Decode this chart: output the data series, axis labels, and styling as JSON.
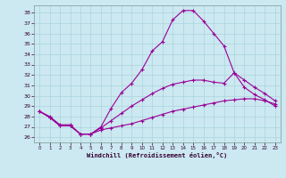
{
  "xlabel": "Windchill (Refroidissement éolien,°C)",
  "background_color": "#cce8f0",
  "grid_color": "#aad4de",
  "line_color": "#990099",
  "xlim": [
    -0.5,
    23.5
  ],
  "ylim": [
    25.5,
    38.7
  ],
  "xticks": [
    0,
    1,
    2,
    3,
    4,
    5,
    6,
    7,
    8,
    9,
    10,
    11,
    12,
    13,
    14,
    15,
    16,
    17,
    18,
    19,
    20,
    21,
    22,
    23
  ],
  "yticks": [
    26,
    27,
    28,
    29,
    30,
    31,
    32,
    33,
    34,
    35,
    36,
    37,
    38
  ],
  "s1_x": [
    0,
    1,
    2,
    3,
    4,
    5,
    6,
    7,
    8,
    9,
    10,
    11,
    12,
    13,
    14,
    15,
    16,
    17,
    18,
    19,
    20,
    21,
    22,
    23
  ],
  "s1_y": [
    28.5,
    28.0,
    27.2,
    27.2,
    26.3,
    26.3,
    27.0,
    28.8,
    30.3,
    31.2,
    32.5,
    34.3,
    35.2,
    37.3,
    38.2,
    38.2,
    37.2,
    36.0,
    34.8,
    32.2,
    30.8,
    30.1,
    29.6,
    29.0
  ],
  "s2_x": [
    0,
    1,
    2,
    3,
    4,
    5,
    6,
    7,
    8,
    9,
    10,
    11,
    12,
    13,
    14,
    15,
    16,
    17,
    18,
    19,
    20,
    21,
    22,
    23
  ],
  "s2_y": [
    28.5,
    27.9,
    27.1,
    27.1,
    26.3,
    26.3,
    26.7,
    26.9,
    27.1,
    27.3,
    27.6,
    27.9,
    28.2,
    28.5,
    28.7,
    28.9,
    29.1,
    29.3,
    29.5,
    29.6,
    29.7,
    29.7,
    29.5,
    29.2
  ],
  "s3_x": [
    0,
    1,
    2,
    3,
    4,
    5,
    6,
    7,
    8,
    9,
    10,
    11,
    12,
    13,
    14,
    15,
    16,
    17,
    18,
    19,
    20,
    21,
    22,
    23
  ],
  "s3_y": [
    28.5,
    27.9,
    27.1,
    27.1,
    26.3,
    26.3,
    26.9,
    27.6,
    28.3,
    29.0,
    29.6,
    30.2,
    30.7,
    31.1,
    31.3,
    31.5,
    31.5,
    31.3,
    31.2,
    32.2,
    31.5,
    30.8,
    30.2,
    29.5
  ]
}
